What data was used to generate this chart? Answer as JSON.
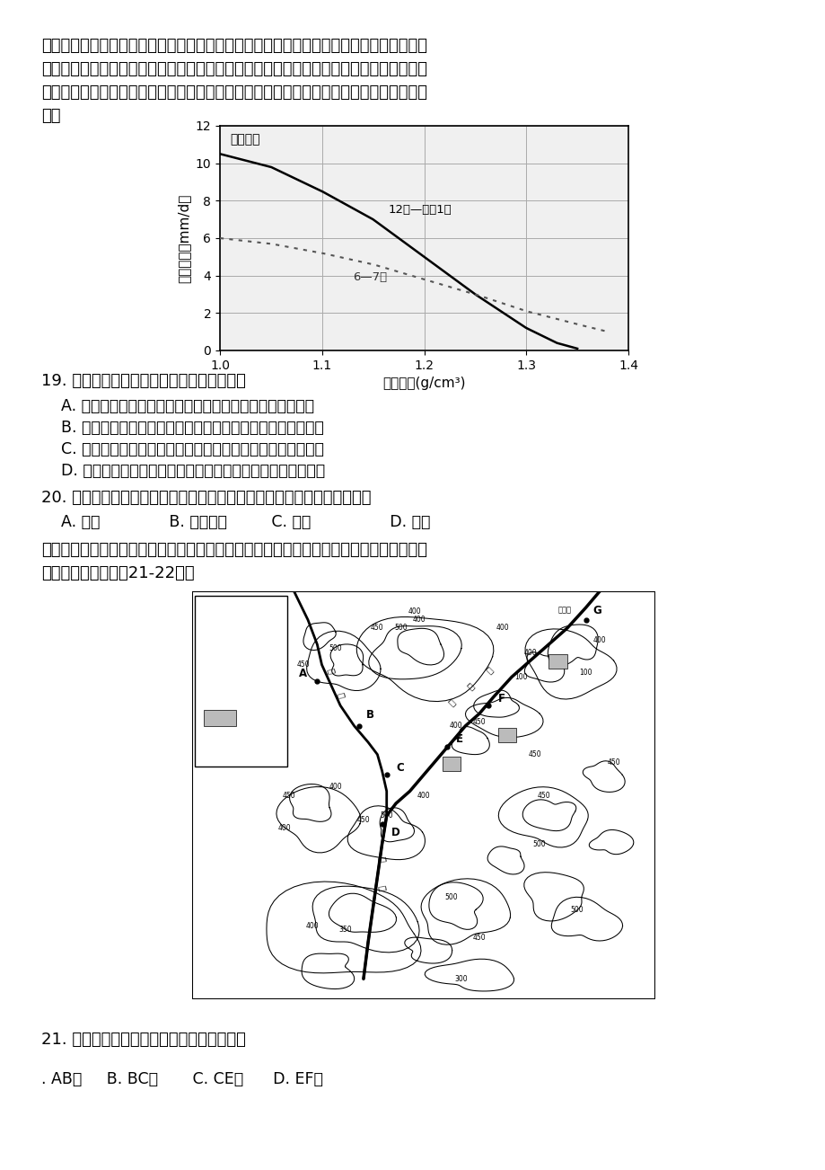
{
  "para1_lines": [
    "阿塔卡马盐湖位于南美洲安第斯山脉南段西侧的阿塔卡马沙漠中，原为大洋底部，后因地壳",
    "运动形成内陆湖。其富含硫化钞、硫酸锂等多种矿产资源。某公司采用卦水蕲发法开发该湖",
    "中矿产资源成为世界盐湖资源开发的典范。图为该沙漠盐湖的卦水蕲发速率图。据此完成下",
    "题。"
  ],
  "chart_xlabel": "湖水密度(g/cm³)",
  "chart_ylabel": "蕲发速率（mm/d）",
  "chart_title_label": "每月平均",
  "curve1_label": "12月—次年1月",
  "curve2_label": "6—7月",
  "q19_text": "19. 阿塔卡马盐湖矿产资源丰富的原因是（）",
  "q19_A": "    A. 位于沙漠地区，风将沙漠中的矿物吹入湖中富集形成矿产",
  "q19_B": "    B. 大洋底部抬升为内陆湖，周边岩石矿物通过流水等汇入湖泊",
  "q19_C": "    C. 火山喷发带来丰富的矿物元素，通过化合作用形成各种矿产",
  "q19_D": "    D. 盐湖所在地区气候干旱，蕲发旺盛，造成各种矿产资源富集",
  "q20_text": "20. 由图判断，与阿塔卡马盐湖卦水蕲发速率变化关联性最小的因素是（）",
  "q20_options": "    A. 气温              B. 湖水密度         C. 天气                D. 海拔",
  "para2_line1": "图为山东省沂源县西南某局部区域等高线分布示意图。图中的东周河因溯源侵蚀，袋夺了沂",
  "para2_line2": "河上源。读图，完成21-22题。",
  "q21_text": "21. 袋夺发生后，河水流向出现倒转的河段是",
  "q21_options": ". AB段     B. BC段       C. CE段      D. EF段",
  "bg_color": "#ffffff",
  "text_color": "#000000"
}
